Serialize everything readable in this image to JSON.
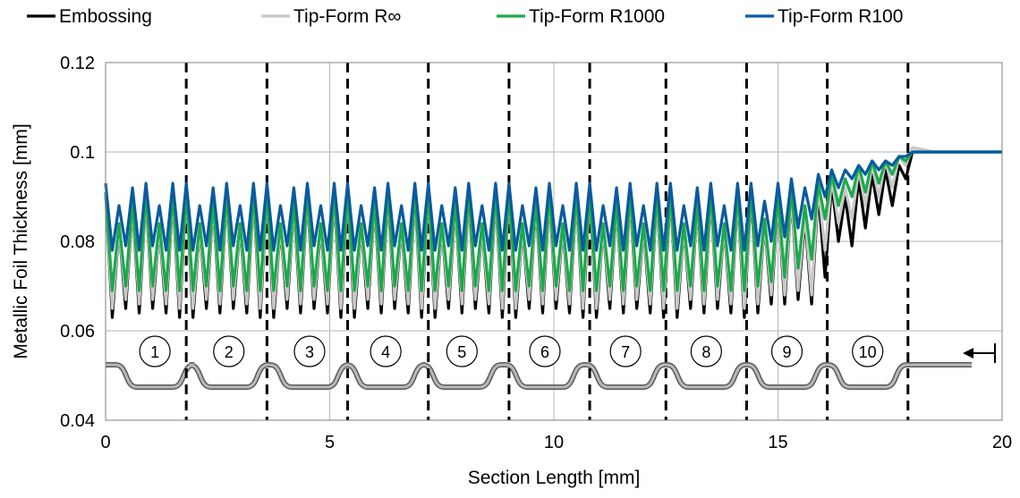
{
  "chart_data": {
    "type": "line",
    "title": "",
    "xlabel": "Section Length [mm]",
    "ylabel": "Metallic Foil Thickness [mm]",
    "xlim": [
      0,
      20
    ],
    "ylim": [
      0.04,
      0.12
    ],
    "x_ticks": [
      0,
      5,
      10,
      15,
      20
    ],
    "y_ticks": [
      0.04,
      0.06,
      0.08,
      0.1,
      0.12
    ],
    "x_tick_labels": [
      "0",
      "5",
      "10",
      "15",
      "20"
    ],
    "y_tick_labels": [
      "0.04",
      "0.06",
      "0.08",
      "0.1",
      "0.12"
    ],
    "grid": "major",
    "legend_position": "top",
    "section_boundaries": [
      1.8,
      3.6,
      5.4,
      7.2,
      9.0,
      10.8,
      12.5,
      14.3,
      16.1,
      17.9
    ],
    "section_labels": [
      {
        "label": "1",
        "x": 1.1
      },
      {
        "label": "2",
        "x": 2.75
      },
      {
        "label": "3",
        "x": 4.55
      },
      {
        "label": "4",
        "x": 6.25
      },
      {
        "label": "5",
        "x": 7.95
      },
      {
        "label": "6",
        "x": 9.8
      },
      {
        "label": "7",
        "x": 11.6
      },
      {
        "label": "8",
        "x": 13.4
      },
      {
        "label": "9",
        "x": 15.2
      },
      {
        "label": "10",
        "x": 17.0
      }
    ],
    "series": [
      {
        "name": "Embossing",
        "color": "#000000",
        "x": [
          0,
          0.15,
          0.3,
          0.45,
          0.6,
          0.75,
          0.9,
          1.05,
          1.2,
          1.35,
          1.5,
          1.65,
          1.8,
          1.95,
          2.1,
          2.25,
          2.4,
          2.55,
          2.7,
          2.85,
          3.0,
          3.15,
          3.3,
          3.45,
          3.6,
          3.75,
          3.9,
          4.05,
          4.2,
          4.35,
          4.5,
          4.65,
          4.8,
          4.95,
          5.1,
          5.25,
          5.4,
          5.55,
          5.7,
          5.85,
          6.0,
          6.15,
          6.3,
          6.45,
          6.6,
          6.75,
          6.9,
          7.05,
          7.2,
          7.35,
          7.5,
          7.65,
          7.8,
          7.95,
          8.1,
          8.25,
          8.4,
          8.55,
          8.7,
          8.85,
          9.0,
          9.15,
          9.3,
          9.45,
          9.6,
          9.75,
          9.9,
          10.05,
          10.2,
          10.35,
          10.5,
          10.65,
          10.8,
          10.95,
          11.1,
          11.25,
          11.4,
          11.55,
          11.7,
          11.85,
          12.0,
          12.15,
          12.3,
          12.45,
          12.6,
          12.75,
          12.9,
          13.05,
          13.2,
          13.35,
          13.5,
          13.65,
          13.8,
          13.95,
          14.1,
          14.25,
          14.4,
          14.55,
          14.7,
          14.85,
          15.0,
          15.15,
          15.3,
          15.45,
          15.6,
          15.75,
          15.9,
          16.05,
          16.2,
          16.35,
          16.5,
          16.65,
          16.8,
          16.95,
          17.1,
          17.25,
          17.4,
          17.55,
          17.7,
          17.85,
          18.0,
          18.5,
          19.0,
          19.5,
          20.0
        ],
        "y": [
          0.091,
          0.063,
          0.083,
          0.065,
          0.088,
          0.064,
          0.09,
          0.065,
          0.083,
          0.064,
          0.09,
          0.063,
          0.091,
          0.063,
          0.083,
          0.065,
          0.088,
          0.064,
          0.09,
          0.065,
          0.083,
          0.064,
          0.09,
          0.063,
          0.091,
          0.063,
          0.083,
          0.065,
          0.088,
          0.064,
          0.09,
          0.065,
          0.083,
          0.064,
          0.09,
          0.063,
          0.091,
          0.063,
          0.083,
          0.065,
          0.088,
          0.064,
          0.09,
          0.065,
          0.083,
          0.064,
          0.09,
          0.063,
          0.091,
          0.063,
          0.083,
          0.065,
          0.088,
          0.064,
          0.09,
          0.065,
          0.083,
          0.064,
          0.09,
          0.063,
          0.091,
          0.063,
          0.083,
          0.065,
          0.088,
          0.064,
          0.09,
          0.065,
          0.083,
          0.064,
          0.09,
          0.063,
          0.091,
          0.063,
          0.083,
          0.065,
          0.088,
          0.064,
          0.09,
          0.065,
          0.083,
          0.064,
          0.09,
          0.063,
          0.091,
          0.063,
          0.083,
          0.065,
          0.088,
          0.064,
          0.09,
          0.065,
          0.083,
          0.064,
          0.09,
          0.063,
          0.091,
          0.064,
          0.084,
          0.066,
          0.089,
          0.066,
          0.09,
          0.067,
          0.085,
          0.066,
          0.091,
          0.072,
          0.093,
          0.08,
          0.09,
          0.079,
          0.094,
          0.083,
          0.095,
          0.086,
          0.096,
          0.088,
          0.097,
          0.094,
          0.1,
          0.1,
          0.1,
          0.1,
          0.1
        ]
      },
      {
        "name": "Tip-Form R∞",
        "color": "#c8c8c8",
        "x": [
          0,
          0.15,
          0.3,
          0.45,
          0.6,
          0.75,
          0.9,
          1.05,
          1.2,
          1.35,
          1.5,
          1.65,
          1.8,
          1.95,
          2.1,
          2.25,
          2.4,
          2.55,
          2.7,
          2.85,
          3.0,
          3.15,
          3.3,
          3.45,
          3.6,
          3.75,
          3.9,
          4.05,
          4.2,
          4.35,
          4.5,
          4.65,
          4.8,
          4.95,
          5.1,
          5.25,
          5.4,
          5.55,
          5.7,
          5.85,
          6.0,
          6.15,
          6.3,
          6.45,
          6.6,
          6.75,
          6.9,
          7.05,
          7.2,
          7.35,
          7.5,
          7.65,
          7.8,
          7.95,
          8.1,
          8.25,
          8.4,
          8.55,
          8.7,
          8.85,
          9.0,
          9.15,
          9.3,
          9.45,
          9.6,
          9.75,
          9.9,
          10.05,
          10.2,
          10.35,
          10.5,
          10.65,
          10.8,
          10.95,
          11.1,
          11.25,
          11.4,
          11.55,
          11.7,
          11.85,
          12.0,
          12.15,
          12.3,
          12.45,
          12.6,
          12.75,
          12.9,
          13.05,
          13.2,
          13.35,
          13.5,
          13.65,
          13.8,
          13.95,
          14.1,
          14.25,
          14.4,
          14.55,
          14.7,
          14.85,
          15.0,
          15.15,
          15.3,
          15.45,
          15.6,
          15.75,
          15.9,
          16.05,
          16.2,
          16.35,
          16.5,
          16.65,
          16.8,
          16.95,
          17.1,
          17.25,
          17.4,
          17.55,
          17.7,
          17.85,
          18.0,
          18.5,
          19.0,
          19.5,
          20.0
        ],
        "y": [
          0.091,
          0.065,
          0.083,
          0.067,
          0.088,
          0.066,
          0.09,
          0.067,
          0.083,
          0.066,
          0.09,
          0.065,
          0.091,
          0.065,
          0.083,
          0.067,
          0.088,
          0.066,
          0.09,
          0.067,
          0.083,
          0.066,
          0.09,
          0.065,
          0.091,
          0.065,
          0.083,
          0.067,
          0.088,
          0.066,
          0.09,
          0.067,
          0.083,
          0.066,
          0.09,
          0.065,
          0.091,
          0.065,
          0.083,
          0.067,
          0.088,
          0.066,
          0.09,
          0.067,
          0.083,
          0.066,
          0.09,
          0.065,
          0.091,
          0.065,
          0.083,
          0.067,
          0.088,
          0.066,
          0.09,
          0.067,
          0.083,
          0.066,
          0.09,
          0.065,
          0.091,
          0.065,
          0.083,
          0.067,
          0.088,
          0.066,
          0.09,
          0.067,
          0.083,
          0.066,
          0.09,
          0.065,
          0.091,
          0.065,
          0.083,
          0.067,
          0.088,
          0.066,
          0.09,
          0.067,
          0.083,
          0.066,
          0.09,
          0.065,
          0.091,
          0.065,
          0.083,
          0.067,
          0.088,
          0.066,
          0.09,
          0.067,
          0.083,
          0.066,
          0.09,
          0.065,
          0.091,
          0.066,
          0.084,
          0.068,
          0.089,
          0.068,
          0.09,
          0.069,
          0.086,
          0.068,
          0.092,
          0.078,
          0.094,
          0.084,
          0.092,
          0.085,
          0.096,
          0.088,
          0.097,
          0.09,
          0.098,
          0.092,
          0.099,
          0.097,
          0.101,
          0.1,
          0.1,
          0.1,
          0.1
        ]
      },
      {
        "name": "Tip-Form R1000",
        "color": "#1aaa4a",
        "x": [
          0,
          0.15,
          0.3,
          0.45,
          0.6,
          0.75,
          0.9,
          1.05,
          1.2,
          1.35,
          1.5,
          1.65,
          1.8,
          1.95,
          2.1,
          2.25,
          2.4,
          2.55,
          2.7,
          2.85,
          3.0,
          3.15,
          3.3,
          3.45,
          3.6,
          3.75,
          3.9,
          4.05,
          4.2,
          4.35,
          4.5,
          4.65,
          4.8,
          4.95,
          5.1,
          5.25,
          5.4,
          5.55,
          5.7,
          5.85,
          6.0,
          6.15,
          6.3,
          6.45,
          6.6,
          6.75,
          6.9,
          7.05,
          7.2,
          7.35,
          7.5,
          7.65,
          7.8,
          7.95,
          8.1,
          8.25,
          8.4,
          8.55,
          8.7,
          8.85,
          9.0,
          9.15,
          9.3,
          9.45,
          9.6,
          9.75,
          9.9,
          10.05,
          10.2,
          10.35,
          10.5,
          10.65,
          10.8,
          10.95,
          11.1,
          11.25,
          11.4,
          11.55,
          11.7,
          11.85,
          12.0,
          12.15,
          12.3,
          12.45,
          12.6,
          12.75,
          12.9,
          13.05,
          13.2,
          13.35,
          13.5,
          13.65,
          13.8,
          13.95,
          14.1,
          14.25,
          14.4,
          14.55,
          14.7,
          14.85,
          15.0,
          15.15,
          15.3,
          15.45,
          15.6,
          15.75,
          15.9,
          16.05,
          16.2,
          16.35,
          16.5,
          16.65,
          16.8,
          16.95,
          17.1,
          17.25,
          17.4,
          17.55,
          17.7,
          17.85,
          18.0,
          18.5,
          19.0,
          19.5,
          20.0
        ],
        "y": [
          0.091,
          0.069,
          0.084,
          0.07,
          0.089,
          0.069,
          0.091,
          0.07,
          0.084,
          0.069,
          0.091,
          0.069,
          0.091,
          0.069,
          0.084,
          0.07,
          0.089,
          0.069,
          0.091,
          0.07,
          0.084,
          0.069,
          0.091,
          0.069,
          0.091,
          0.069,
          0.084,
          0.07,
          0.089,
          0.069,
          0.091,
          0.07,
          0.084,
          0.069,
          0.091,
          0.069,
          0.091,
          0.069,
          0.084,
          0.07,
          0.089,
          0.069,
          0.091,
          0.07,
          0.084,
          0.069,
          0.091,
          0.069,
          0.091,
          0.069,
          0.084,
          0.07,
          0.089,
          0.069,
          0.091,
          0.07,
          0.084,
          0.069,
          0.091,
          0.069,
          0.091,
          0.069,
          0.084,
          0.07,
          0.089,
          0.069,
          0.091,
          0.07,
          0.084,
          0.069,
          0.091,
          0.069,
          0.091,
          0.069,
          0.084,
          0.07,
          0.089,
          0.069,
          0.091,
          0.07,
          0.084,
          0.069,
          0.091,
          0.069,
          0.091,
          0.069,
          0.084,
          0.07,
          0.089,
          0.069,
          0.091,
          0.07,
          0.084,
          0.069,
          0.091,
          0.069,
          0.091,
          0.07,
          0.085,
          0.071,
          0.09,
          0.072,
          0.092,
          0.074,
          0.088,
          0.076,
          0.093,
          0.085,
          0.095,
          0.088,
          0.094,
          0.09,
          0.097,
          0.091,
          0.098,
          0.093,
          0.098,
          0.095,
          0.099,
          0.098,
          0.1,
          0.1,
          0.1,
          0.1,
          0.1
        ]
      },
      {
        "name": "Tip-Form R100",
        "color": "#0a5aa0",
        "x": [
          0,
          0.15,
          0.3,
          0.45,
          0.6,
          0.75,
          0.9,
          1.05,
          1.2,
          1.35,
          1.5,
          1.65,
          1.8,
          1.95,
          2.1,
          2.25,
          2.4,
          2.55,
          2.7,
          2.85,
          3.0,
          3.15,
          3.3,
          3.45,
          3.6,
          3.75,
          3.9,
          4.05,
          4.2,
          4.35,
          4.5,
          4.65,
          4.8,
          4.95,
          5.1,
          5.25,
          5.4,
          5.55,
          5.7,
          5.85,
          6.0,
          6.15,
          6.3,
          6.45,
          6.6,
          6.75,
          6.9,
          7.05,
          7.2,
          7.35,
          7.5,
          7.65,
          7.8,
          7.95,
          8.1,
          8.25,
          8.4,
          8.55,
          8.7,
          8.85,
          9.0,
          9.15,
          9.3,
          9.45,
          9.6,
          9.75,
          9.9,
          10.05,
          10.2,
          10.35,
          10.5,
          10.65,
          10.8,
          10.95,
          11.1,
          11.25,
          11.4,
          11.55,
          11.7,
          11.85,
          12.0,
          12.15,
          12.3,
          12.45,
          12.6,
          12.75,
          12.9,
          13.05,
          13.2,
          13.35,
          13.5,
          13.65,
          13.8,
          13.95,
          14.1,
          14.25,
          14.4,
          14.55,
          14.7,
          14.85,
          15.0,
          15.15,
          15.3,
          15.45,
          15.6,
          15.75,
          15.9,
          16.05,
          16.2,
          16.35,
          16.5,
          16.65,
          16.8,
          16.95,
          17.1,
          17.25,
          17.4,
          17.55,
          17.7,
          17.85,
          18.0,
          18.5,
          19.0,
          19.5,
          20.0
        ],
        "y": [
          0.093,
          0.078,
          0.088,
          0.079,
          0.092,
          0.078,
          0.093,
          0.079,
          0.088,
          0.078,
          0.093,
          0.078,
          0.093,
          0.078,
          0.088,
          0.079,
          0.092,
          0.078,
          0.093,
          0.079,
          0.088,
          0.078,
          0.093,
          0.078,
          0.093,
          0.078,
          0.088,
          0.079,
          0.092,
          0.078,
          0.093,
          0.079,
          0.088,
          0.078,
          0.093,
          0.078,
          0.093,
          0.078,
          0.088,
          0.079,
          0.092,
          0.078,
          0.093,
          0.079,
          0.088,
          0.078,
          0.093,
          0.078,
          0.093,
          0.078,
          0.088,
          0.079,
          0.092,
          0.078,
          0.093,
          0.079,
          0.088,
          0.078,
          0.093,
          0.078,
          0.093,
          0.078,
          0.088,
          0.079,
          0.092,
          0.078,
          0.093,
          0.079,
          0.088,
          0.078,
          0.093,
          0.078,
          0.093,
          0.078,
          0.088,
          0.079,
          0.092,
          0.078,
          0.093,
          0.079,
          0.088,
          0.078,
          0.093,
          0.078,
          0.093,
          0.078,
          0.088,
          0.079,
          0.092,
          0.078,
          0.093,
          0.079,
          0.088,
          0.078,
          0.093,
          0.078,
          0.093,
          0.079,
          0.089,
          0.08,
          0.093,
          0.081,
          0.094,
          0.083,
          0.092,
          0.085,
          0.095,
          0.09,
          0.096,
          0.092,
          0.096,
          0.094,
          0.097,
          0.095,
          0.098,
          0.096,
          0.098,
          0.097,
          0.099,
          0.099,
          0.1,
          0.1,
          0.1,
          0.1,
          0.1
        ]
      }
    ]
  }
}
